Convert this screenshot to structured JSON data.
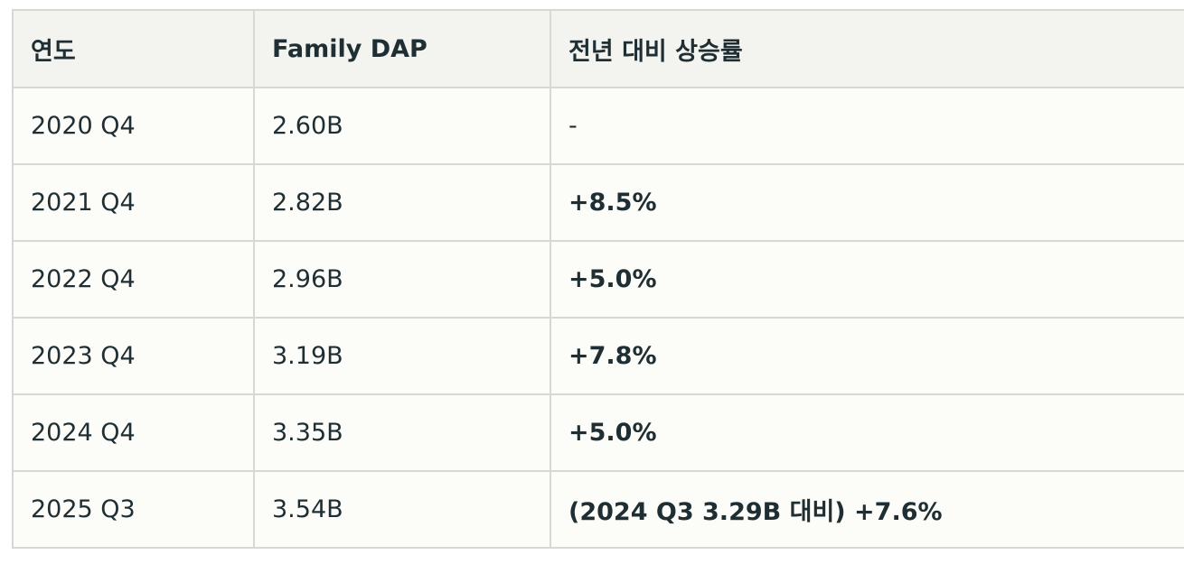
{
  "table": {
    "headers": [
      "연도",
      "Family DAP",
      "전년 대비 상승률"
    ],
    "rows": [
      {
        "year": "2020 Q4",
        "dap": "2.60B",
        "growth": "-"
      },
      {
        "year": "2021 Q4",
        "dap": "2.82B",
        "growth": "+8.5%"
      },
      {
        "year": "2022 Q4",
        "dap": "2.96B",
        "growth": "+5.0%"
      },
      {
        "year": "2023 Q4",
        "dap": "3.19B",
        "growth": "+7.8%"
      },
      {
        "year": "2024 Q4",
        "dap": "3.35B",
        "growth": "+5.0%"
      },
      {
        "year": "2025 Q3",
        "dap": "3.54B",
        "growth": "(2024 Q3 3.29B 대비) +7.6%"
      }
    ]
  },
  "colors": {
    "header_bg": "#f3f3ef",
    "row_bg": "#fcfcf9",
    "border": "#d7d8d5",
    "text": "#1f2e33"
  }
}
